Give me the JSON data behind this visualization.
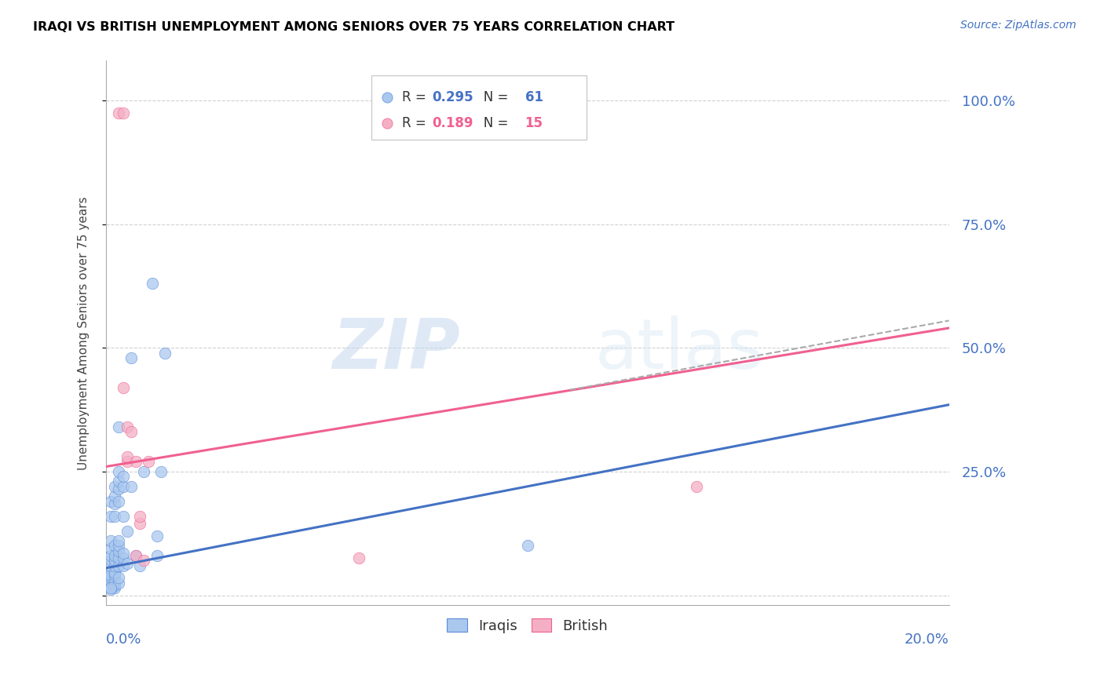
{
  "title": "IRAQI VS BRITISH UNEMPLOYMENT AMONG SENIORS OVER 75 YEARS CORRELATION CHART",
  "source": "Source: ZipAtlas.com",
  "ylabel": "Unemployment Among Seniors over 75 years",
  "yticks": [
    0.0,
    0.25,
    0.5,
    0.75,
    1.0
  ],
  "right_ytick_labels": [
    "",
    "25.0%",
    "50.0%",
    "75.0%",
    "100.0%"
  ],
  "xlim": [
    0.0,
    0.2
  ],
  "ylim": [
    -0.02,
    1.08
  ],
  "legend_R_iraqis": "0.295",
  "legend_N_iraqis": "61",
  "legend_R_british": "0.189",
  "legend_N_british": "15",
  "watermark": "ZIPatlas",
  "iraqis_color": "#aac8ee",
  "british_color": "#f4afc5",
  "iraqis_edge_color": "#5b8dd9",
  "british_edge_color": "#f06090",
  "iraqis_line_color": "#4472c4",
  "british_line_color": "#f06090",
  "iraqis_scatter": [
    [
      0.0,
      0.03
    ],
    [
      0.0,
      0.04
    ],
    [
      0.001,
      0.02
    ],
    [
      0.001,
      0.025
    ],
    [
      0.001,
      0.03
    ],
    [
      0.001,
      0.035
    ],
    [
      0.001,
      0.04
    ],
    [
      0.001,
      0.06
    ],
    [
      0.001,
      0.07
    ],
    [
      0.001,
      0.08
    ],
    [
      0.001,
      0.095
    ],
    [
      0.001,
      0.11
    ],
    [
      0.001,
      0.16
    ],
    [
      0.001,
      0.19
    ],
    [
      0.002,
      0.015
    ],
    [
      0.002,
      0.02
    ],
    [
      0.002,
      0.025
    ],
    [
      0.002,
      0.03
    ],
    [
      0.002,
      0.04
    ],
    [
      0.002,
      0.045
    ],
    [
      0.002,
      0.06
    ],
    [
      0.002,
      0.07
    ],
    [
      0.002,
      0.08
    ],
    [
      0.002,
      0.1
    ],
    [
      0.002,
      0.16
    ],
    [
      0.002,
      0.185
    ],
    [
      0.002,
      0.2
    ],
    [
      0.002,
      0.22
    ],
    [
      0.003,
      0.025
    ],
    [
      0.003,
      0.035
    ],
    [
      0.003,
      0.06
    ],
    [
      0.003,
      0.075
    ],
    [
      0.003,
      0.09
    ],
    [
      0.003,
      0.1
    ],
    [
      0.003,
      0.11
    ],
    [
      0.003,
      0.19
    ],
    [
      0.003,
      0.215
    ],
    [
      0.003,
      0.23
    ],
    [
      0.003,
      0.25
    ],
    [
      0.003,
      0.34
    ],
    [
      0.004,
      0.06
    ],
    [
      0.004,
      0.075
    ],
    [
      0.004,
      0.085
    ],
    [
      0.004,
      0.16
    ],
    [
      0.004,
      0.22
    ],
    [
      0.004,
      0.24
    ],
    [
      0.005,
      0.065
    ],
    [
      0.005,
      0.13
    ],
    [
      0.006,
      0.22
    ],
    [
      0.006,
      0.48
    ],
    [
      0.007,
      0.08
    ],
    [
      0.008,
      0.06
    ],
    [
      0.009,
      0.25
    ],
    [
      0.011,
      0.63
    ],
    [
      0.012,
      0.08
    ],
    [
      0.012,
      0.12
    ],
    [
      0.013,
      0.25
    ],
    [
      0.014,
      0.49
    ],
    [
      0.1,
      0.1
    ],
    [
      0.001,
      0.012
    ],
    [
      0.001,
      0.015
    ]
  ],
  "british_scatter": [
    [
      0.003,
      0.975
    ],
    [
      0.004,
      0.975
    ],
    [
      0.004,
      0.42
    ],
    [
      0.005,
      0.34
    ],
    [
      0.005,
      0.27
    ],
    [
      0.005,
      0.28
    ],
    [
      0.006,
      0.33
    ],
    [
      0.007,
      0.27
    ],
    [
      0.007,
      0.08
    ],
    [
      0.008,
      0.145
    ],
    [
      0.008,
      0.16
    ],
    [
      0.009,
      0.07
    ],
    [
      0.14,
      0.22
    ],
    [
      0.06,
      0.075
    ],
    [
      0.01,
      0.27
    ]
  ],
  "iraqis_trend_x": [
    0.0,
    0.2
  ],
  "iraqis_trend_y": [
    0.055,
    0.385
  ],
  "british_trend_x": [
    0.0,
    0.2
  ],
  "british_trend_y": [
    0.26,
    0.54
  ],
  "dashed_trend_x": [
    0.11,
    0.2
  ],
  "dashed_trend_y": [
    0.415,
    0.555
  ]
}
